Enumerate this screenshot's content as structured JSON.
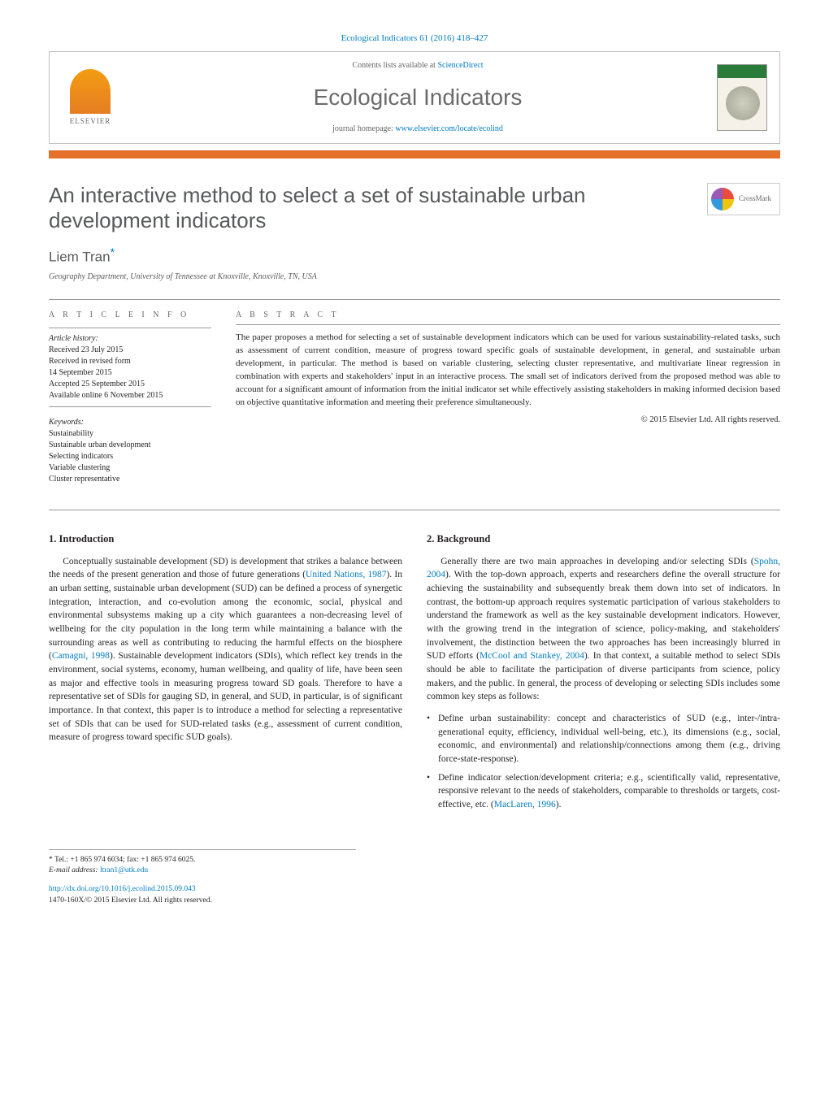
{
  "journal_ref": "Ecological Indicators 61 (2016) 418–427",
  "header": {
    "contents_prefix": "Contents lists available at ",
    "contents_link": "ScienceDirect",
    "journal_name": "Ecological Indicators",
    "homepage_prefix": "journal homepage: ",
    "homepage_url": "www.elsevier.com/locate/ecolind",
    "publisher": "ELSEVIER"
  },
  "article": {
    "title": "An interactive method to select a set of sustainable urban development indicators",
    "author": "Liem Tran",
    "author_mark": "*",
    "affiliation": "Geography Department, University of Tennessee at Knoxville, Knoxville, TN, USA",
    "crossmark": "CrossMark"
  },
  "info": {
    "section_label": "A R T I C L E   I N F O",
    "history_label": "Article history:",
    "received": "Received 23 July 2015",
    "revised1": "Received in revised form",
    "revised2": "14 September 2015",
    "accepted": "Accepted 25 September 2015",
    "online": "Available online 6 November 2015",
    "keywords_label": "Keywords:",
    "kw1": "Sustainability",
    "kw2": "Sustainable urban development",
    "kw3": "Selecting indicators",
    "kw4": "Variable clustering",
    "kw5": "Cluster representative"
  },
  "abstract": {
    "section_label": "A B S T R A C T",
    "text": "The paper proposes a method for selecting a set of sustainable development indicators which can be used for various sustainability-related tasks, such as assessment of current condition, measure of progress toward specific goals of sustainable development, in general, and sustainable urban development, in particular. The method is based on variable clustering, selecting cluster representative, and multivariate linear regression in combination with experts and stakeholders' input in an interactive process. The small set of indicators derived from the proposed method was able to account for a significant amount of information from the initial indicator set while effectively assisting stakeholders in making informed decision based on objective quantitative information and meeting their preference simultaneously.",
    "copyright": "© 2015 Elsevier Ltd. All rights reserved."
  },
  "body": {
    "sec1_title": "1.  Introduction",
    "sec1_p1a": "Conceptually sustainable development (SD) is development that strikes a balance between the needs of the present generation and those of future generations (",
    "sec1_cite1": "United Nations, 1987",
    "sec1_p1b": "). In an urban setting, sustainable urban development (SUD) can be defined a process of synergetic integration, interaction, and co-evolution among the economic, social, physical and environmental subsystems making up a city which guarantees a non-decreasing level of wellbeing for the city population in the long term while maintaining a balance with the surrounding areas as well as contributing to reducing the harmful effects on the biosphere (",
    "sec1_cite2": "Camagni, 1998",
    "sec1_p1c": "). Sustainable development indicators (SDIs), which reflect key trends in the environment, social systems, economy, human wellbeing, and quality of life, have been seen as major and effective tools in measuring progress toward SD goals. Therefore to have a representative set of SDIs for gauging SD, in general, and SUD, in particular, is of significant importance. In that context, this paper is to introduce a method for selecting a representative set of SDIs that can be used for SUD-related tasks (e.g., assessment of current condition, measure of progress toward specific SUD goals).",
    "sec2_title": "2.  Background",
    "sec2_p1a": "Generally there are two main approaches in developing and/or selecting SDIs (",
    "sec2_cite1": "Spohn, 2004",
    "sec2_p1b": "). With the top-down approach, experts and researchers define the overall structure for achieving the sustainability and subsequently break them down into set of indicators. In contrast, the bottom-up approach requires systematic participation of various stakeholders to understand the framework as well as the key sustainable development indicators. However, with the growing trend in the integration of science, policy-making, and stakeholders' involvement, the distinction between the two approaches has been increasingly blurred in SUD efforts (",
    "sec2_cite2": "McCool and Stankey, 2004",
    "sec2_p1c": "). In that context, a suitable method to select SDIs should be able to facilitate the participation of diverse participants from science, policy makers, and the public. In general, the process of developing or selecting SDIs includes some common key steps as follows:",
    "li1": "Define urban sustainability: concept and characteristics of SUD (e.g., inter-/intra-generational equity, efficiency, individual well-being, etc.), its dimensions (e.g., social, economic, and environmental) and relationship/connections among them (e.g., driving force-state-response).",
    "li2a": "Define indicator selection/development criteria; e.g., scientifically valid, representative, responsive relevant to the needs of stakeholders, comparable to thresholds or targets, cost-effective, etc. (",
    "li2_cite": "MacLaren, 1996",
    "li2b": ")."
  },
  "footnote": {
    "tel": "* Tel.: +1 865 974 6034; fax: +1 865 974 6025.",
    "email_label": "E-mail address: ",
    "email": "ltran1@utk.edu"
  },
  "doi": {
    "url": "http://dx.doi.org/10.1016/j.ecolind.2015.09.043",
    "issn_copy": "1470-160X/© 2015 Elsevier Ltd. All rights reserved."
  },
  "colors": {
    "link": "#007cc2",
    "accent_bar": "#e5702a",
    "heading_gray": "#58595b"
  }
}
